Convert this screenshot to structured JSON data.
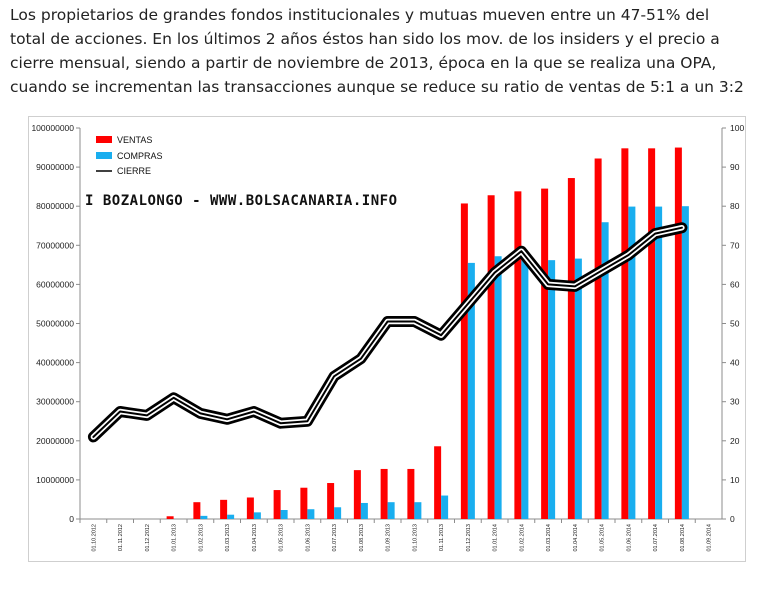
{
  "intro": {
    "lines": [
      "Los  propietarios de grandes fondos institucionales  y mutuas mueven entre un 47-51% del",
      "total de acciones. En los últimos 2 años éstos han sido los mov. de los insiders y el precio a",
      "cierre mensual, siendo a partir de noviembre de 2013, época en la que se realiza una OPA,",
      "cuando se incrementan las transacciones aunque se reduce su ratio de ventas de 5:1 a un 3:2"
    ]
  },
  "watermark": "I BOZALONGO - WWW.BOLSACANARIA.INFO",
  "chart_data": {
    "type": "bar",
    "categories": [
      "01.10.2012",
      "01.11.2012",
      "01.12.2012",
      "01.01.2013",
      "01.02.2013",
      "01.03.2013",
      "01.04.2013",
      "01.05.2013",
      "01.06.2013",
      "01.07.2013",
      "01.08.2013",
      "01.09.2013",
      "01.10.2013",
      "01.11.2013",
      "01.12.2013",
      "01.01.2014",
      "01.02.2014",
      "01.03.2014",
      "01.04.2014",
      "01.05.2014",
      "01.06.2014",
      "01.07.2014",
      "01.08.2014",
      "01.09.2014"
    ],
    "series": [
      {
        "name": "VENTAS",
        "type": "bar",
        "axis": "left",
        "color": "#ff0000",
        "values": [
          0,
          0,
          0,
          700000,
          4300000,
          4900000,
          5500000,
          7400000,
          8000000,
          9200000,
          12500000,
          12800000,
          12800000,
          18600000,
          80700000,
          82800000,
          83800000,
          84500000,
          87200000,
          92200000,
          94800000,
          94800000,
          95000000,
          0
        ]
      },
      {
        "name": "COMPRAS",
        "type": "bar",
        "axis": "left",
        "color": "#19aeef",
        "values": [
          0,
          0,
          0,
          0,
          800000,
          1100000,
          1700000,
          2300000,
          2500000,
          3000000,
          4100000,
          4300000,
          4300000,
          6000000,
          65500000,
          67200000,
          68000000,
          66200000,
          66600000,
          75900000,
          79900000,
          79900000,
          80000000,
          0
        ]
      },
      {
        "name": "CIERRE",
        "type": "line",
        "axis": "right",
        "color": "#000000",
        "values": [
          21,
          27.5,
          26.5,
          31,
          27,
          25.5,
          27.5,
          24.5,
          25,
          36.5,
          41,
          50.5,
          50.5,
          47,
          55,
          63,
          68.5,
          60,
          59.5,
          63.5,
          67.5,
          73,
          74.5,
          null
        ]
      }
    ],
    "y_left": {
      "min": 0,
      "max": 100000000,
      "ticks": [
        "0",
        "10000000",
        "20000000",
        "30000000",
        "40000000",
        "50000000",
        "60000000",
        "70000000",
        "80000000",
        "90000000",
        "100000000"
      ]
    },
    "y_right": {
      "min": 0,
      "max": 100,
      "ticks": [
        "0",
        "10",
        "20",
        "30",
        "40",
        "50",
        "60",
        "70",
        "80",
        "90",
        "100"
      ]
    },
    "legend": "top-left",
    "grid": false
  }
}
